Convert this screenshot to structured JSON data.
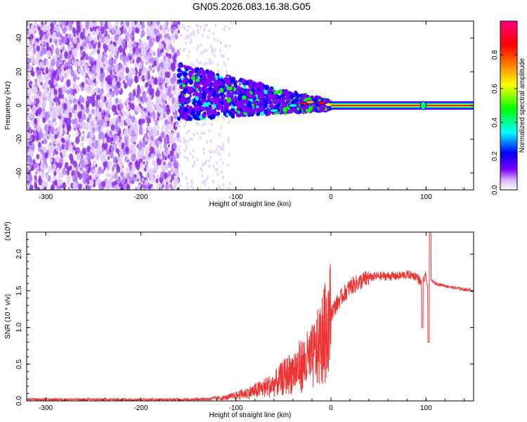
{
  "title": "GN05.2026.083.16.38.G05",
  "chart_data": [
    {
      "type": "heatmap",
      "xlabel": "Height of straight line (km)",
      "ylabel": "Frequency (Hz)",
      "xlim": [
        -320,
        150
      ],
      "ylim": [
        -50,
        50
      ],
      "xticks": [
        -300,
        -200,
        -100,
        0,
        100
      ],
      "yticks": [
        -40,
        -20,
        0,
        20,
        40
      ],
      "colorbar": {
        "label": "Normalized spectral amplitude",
        "range": [
          0.0,
          1.0
        ],
        "ticks": [
          0.0,
          0.2,
          0.4,
          0.6,
          0.8
        ],
        "colors": [
          "#ffffff",
          "#8000ff",
          "#0000ff",
          "#00ffff",
          "#00ff00",
          "#ffff00",
          "#ff8000",
          "#ff0000",
          "#ff0080"
        ]
      },
      "features": {
        "noise_region_x": [
          -320,
          -160
        ],
        "transition_region_x": [
          -160,
          0
        ],
        "steady_line_x": [
          0,
          150
        ],
        "steady_line_freq": 0,
        "peak_marker_x": 97
      }
    },
    {
      "type": "line",
      "xlabel": "Height of straight line (km)",
      "ylabel": "SNR (10 * v/v)",
      "yscale_label": "(x10",
      "yscale_exp": "4",
      "xlim": [
        -320,
        150
      ],
      "ylim": [
        0,
        2.3
      ],
      "xticks": [
        -300,
        -200,
        -100,
        0,
        100
      ],
      "yticks": [
        0.0,
        0.5,
        1.0,
        1.5,
        2.0
      ],
      "line_color": "#ee3333",
      "series": [
        {
          "x": [
            -320,
            -250,
            -200,
            -150,
            -130,
            -110,
            -100,
            -80,
            -60,
            -50,
            -40,
            -30,
            -25,
            -20,
            -15,
            -10,
            -5,
            0,
            5,
            10,
            20,
            30,
            40,
            50,
            60,
            70,
            80,
            90,
            95,
            100,
            103,
            105,
            110,
            120,
            130,
            140,
            150
          ],
          "values": [
            0.02,
            0.02,
            0.02,
            0.02,
            0.03,
            0.05,
            0.08,
            0.15,
            0.25,
            0.35,
            0.45,
            0.55,
            0.6,
            0.65,
            0.75,
            0.9,
            1.05,
            1.2,
            1.3,
            1.4,
            1.55,
            1.62,
            1.68,
            1.7,
            1.7,
            1.7,
            1.72,
            1.7,
            1.6,
            1.7,
            1.4,
            1.65,
            1.6,
            1.57,
            1.54,
            1.52,
            1.5
          ]
        }
      ]
    }
  ]
}
